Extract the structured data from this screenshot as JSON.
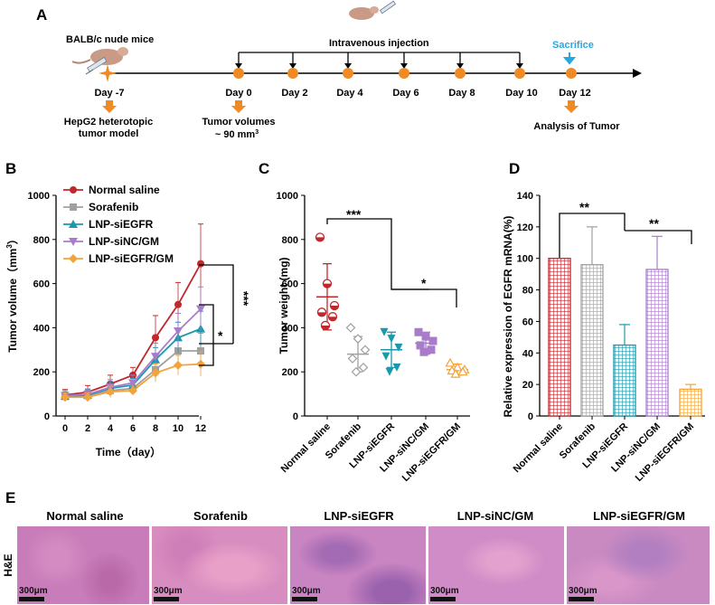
{
  "panels": {
    "a": "A",
    "b": "B",
    "c": "C",
    "d": "D",
    "e": "E"
  },
  "colors": {
    "normal_saline": "#c0282d",
    "sorafenib": "#a0a0a0",
    "lnp_siegfr": "#1a98ac",
    "lnp_sinc_gm": "#a97ccb",
    "lnp_siegfr_gm": "#f2a33b",
    "timeline_dot": "#f08a24",
    "sacrifice_text": "#27a7e0",
    "tissue": "#c86fb0"
  },
  "timeline": {
    "model_label": "BALB/c nude  mice",
    "injection_label": "Intravenous injection",
    "sacrifice_label": "Sacrifice",
    "days": [
      "Day -7",
      "Day 0",
      "Day 2",
      "Day 4",
      "Day 6",
      "Day 8",
      "Day 10",
      "Day 12"
    ],
    "note_model_line1": "HepG2 heterotopic",
    "note_model_line2": "tumor model",
    "note_volume_line1": "Tumor volumes",
    "note_volume_line2": "~ 90 mm",
    "note_volume_sup": "3",
    "note_analysis": "Analysis of Tumor"
  },
  "significance": {
    "b_top": "***",
    "b_bottom": "*",
    "c_top": "***",
    "c_bottom": "*",
    "d_left": "**",
    "d_right": "**"
  },
  "chart_data": [
    {
      "type": "line",
      "panel": "B",
      "xlabel": "Time（day）",
      "ylabel_main": "Tumor volume（mm",
      "ylabel_sup": "3",
      "ylabel_end": "）",
      "x": [
        0,
        2,
        4,
        6,
        8,
        10,
        12
      ],
      "xlim": [
        0,
        12
      ],
      "ylim": [
        0,
        1000
      ],
      "yticks": [
        0,
        200,
        400,
        600,
        800,
        1000
      ],
      "legend_position": "top-left",
      "series": [
        {
          "name": "Normal saline",
          "values": [
            95,
            108,
            145,
            185,
            355,
            505,
            690
          ],
          "err": [
            25,
            30,
            40,
            35,
            100,
            100,
            180
          ]
        },
        {
          "name": "Sorafenib",
          "values": [
            88,
            92,
            115,
            125,
            210,
            295,
            295
          ],
          "err": [
            20,
            25,
            30,
            25,
            50,
            60,
            80
          ]
        },
        {
          "name": "LNP-siEGFR",
          "values": [
            90,
            95,
            125,
            140,
            255,
            355,
            395
          ],
          "err": [
            20,
            25,
            30,
            30,
            55,
            70,
            80
          ]
        },
        {
          "name": "LNP-siNC/GM",
          "values": [
            92,
            98,
            130,
            150,
            270,
            385,
            485
          ],
          "err": [
            25,
            25,
            35,
            35,
            60,
            80,
            100
          ]
        },
        {
          "name": "LNP-siEGFR/GM",
          "values": [
            85,
            85,
            110,
            115,
            195,
            230,
            235
          ],
          "err": [
            20,
            20,
            25,
            20,
            40,
            45,
            55
          ]
        }
      ]
    },
    {
      "type": "scatter",
      "panel": "C",
      "ylabel": "Tumor weight (mg)",
      "ylim": [
        0,
        1000
      ],
      "yticks": [
        0,
        200,
        400,
        600,
        800,
        1000
      ],
      "categories": [
        "Normal saline",
        "Sorafenib",
        "LNP-siEGFR",
        "LNP-siNC/GM",
        "LNP-siEGFR/GM"
      ],
      "means": [
        540,
        280,
        300,
        330,
        210
      ],
      "sd": [
        150,
        80,
        80,
        50,
        25
      ],
      "points": [
        [
          810,
          600,
          500,
          470,
          450,
          410
        ],
        [
          400,
          350,
          300,
          260,
          220,
          200
        ],
        [
          380,
          350,
          310,
          270,
          220,
          200
        ],
        [
          380,
          360,
          340,
          320,
          300,
          290
        ],
        [
          240,
          220,
          210,
          205,
          200,
          190
        ]
      ]
    },
    {
      "type": "bar",
      "panel": "D",
      "ylabel": "Relative expression of EGFR mRNA(%)",
      "ylim": [
        0,
        140
      ],
      "yticks": [
        0,
        20,
        40,
        60,
        80,
        100,
        120,
        140
      ],
      "categories": [
        "Normal saline",
        "Sorafenib",
        "LNP-siEGFR",
        "LNP-siNC/GM",
        "LNP-siEGFR/GM"
      ],
      "values": [
        100,
        96,
        45,
        93,
        17
      ],
      "err": [
        0,
        24,
        13,
        21,
        3
      ]
    }
  ],
  "he": {
    "row_label": "H&E",
    "scale": "300μm",
    "titles": [
      "Normal saline",
      "Sorafenib",
      "LNP-siEGFR",
      "LNP-siNC/GM",
      "LNP-siEGFR/GM"
    ]
  }
}
